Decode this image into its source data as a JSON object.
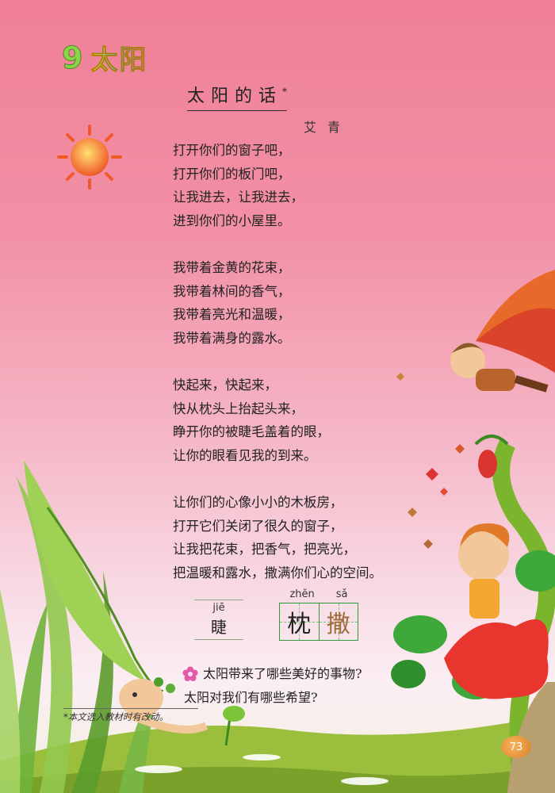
{
  "lesson": {
    "number": "9",
    "title": "太阳"
  },
  "poem": {
    "title": "太阳的话",
    "marker": "*",
    "author": "艾青",
    "stanzas": [
      [
        "打开你们的窗子吧，",
        "打开你们的板门吧，",
        "让我进去，让我进去，",
        "进到你们的小屋里。"
      ],
      [
        "我带着金黄的花束，",
        "我带着林间的香气，",
        "我带着亮光和温暖，",
        "我带着满身的露水。"
      ],
      [
        "快起来，快起来，",
        "快从枕头上抬起头来，",
        "睁开你的被睫毛盖着的眼，",
        "让你的眼看见我的到来。"
      ],
      [
        "让你们的心像小小的木板房，",
        "打开它们关闭了很久的窗子，",
        "让我把花束，把香气，把亮光，",
        "把温暖和露水，撒满你们心的空间。"
      ]
    ]
  },
  "vocab": {
    "plain": {
      "pinyin": "jiē",
      "char": "睫"
    },
    "boxed": [
      {
        "pinyin": "zhěn",
        "char": "枕"
      },
      {
        "pinyin": "sǎ",
        "char": "撒"
      }
    ]
  },
  "questions": [
    "太阳带来了哪些美好的事物?",
    "太阳对我们有哪些希望?"
  ],
  "footnote": "*本文选入教材时有改动。",
  "page_number": "73",
  "icons": [
    "sun-icon",
    "flower-bullet-icon"
  ]
}
